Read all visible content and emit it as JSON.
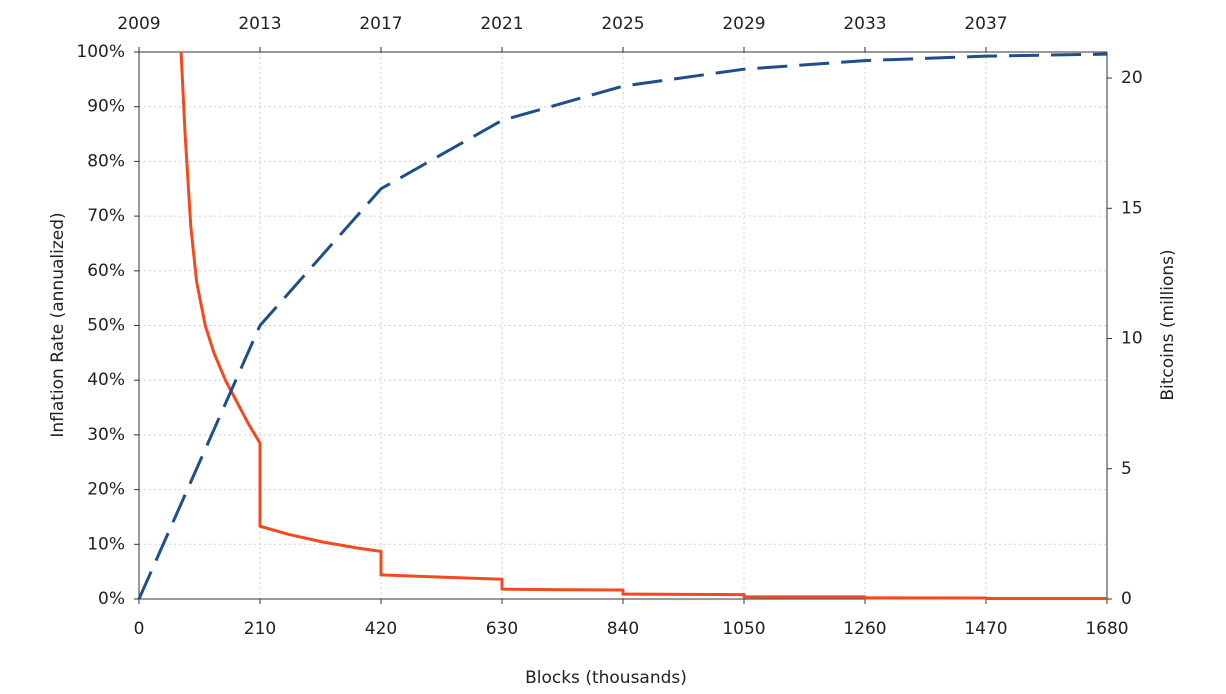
{
  "chart_data": {
    "type": "line",
    "xlabel": "Blocks (thousands)",
    "ylabel": "Inflation Rate (annualized)",
    "y2label": "Bitcoins (millions)",
    "xlim": [
      0,
      1680
    ],
    "xticks": [
      0,
      210,
      420,
      630,
      840,
      1050,
      1260,
      1470,
      1680
    ],
    "x2ticks": [
      {
        "value": 0,
        "label": "2009"
      },
      {
        "value": 210,
        "label": "2013"
      },
      {
        "value": 420,
        "label": "2017"
      },
      {
        "value": 630,
        "label": "2021"
      },
      {
        "value": 840,
        "label": "2025"
      },
      {
        "value": 1050,
        "label": "2029"
      },
      {
        "value": 1260,
        "label": "2033"
      },
      {
        "value": 1470,
        "label": "2037"
      }
    ],
    "ylim": [
      0,
      100
    ],
    "yticks": [
      {
        "value": 0,
        "label": "0%"
      },
      {
        "value": 10,
        "label": "10%"
      },
      {
        "value": 20,
        "label": "20%"
      },
      {
        "value": 30,
        "label": "30%"
      },
      {
        "value": 40,
        "label": "40%"
      },
      {
        "value": 50,
        "label": "50%"
      },
      {
        "value": 60,
        "label": "60%"
      },
      {
        "value": 70,
        "label": "70%"
      },
      {
        "value": 80,
        "label": "80%"
      },
      {
        "value": 90,
        "label": "90%"
      },
      {
        "value": 100,
        "label": "100%"
      }
    ],
    "y2lim": [
      0,
      21
    ],
    "y2ticks": [
      0,
      5,
      10,
      15,
      20
    ],
    "grid": true,
    "series": [
      {
        "color": "#f24a1f",
        "dashed": false,
        "x": [
          73,
          80,
          90,
          100,
          115,
          130,
          150,
          170,
          190,
          210,
          210,
          260,
          320,
          380,
          420,
          420,
          500,
          580,
          630,
          630,
          740,
          840,
          840,
          950,
          1050,
          1050,
          1260,
          1260,
          1470,
          1470,
          1680
        ],
        "values": [
          100,
          85,
          68,
          58,
          50,
          45,
          40,
          36,
          32,
          28.5,
          13.3,
          11.8,
          10.4,
          9.3,
          8.7,
          4.4,
          4.1,
          3.8,
          3.6,
          1.8,
          1.7,
          1.65,
          0.9,
          0.85,
          0.8,
          0.4,
          0.38,
          0.2,
          0.19,
          0.1,
          0.1
        ]
      },
      {
        "color": "#1f4e8c",
        "dashed": true,
        "axis": "y2",
        "x": [
          0,
          210,
          420,
          630,
          840,
          1050,
          1260,
          1470,
          1680
        ],
        "values": [
          0,
          10.5,
          15.75,
          18.375,
          19.69,
          20.34,
          20.67,
          20.84,
          20.92
        ]
      }
    ]
  }
}
